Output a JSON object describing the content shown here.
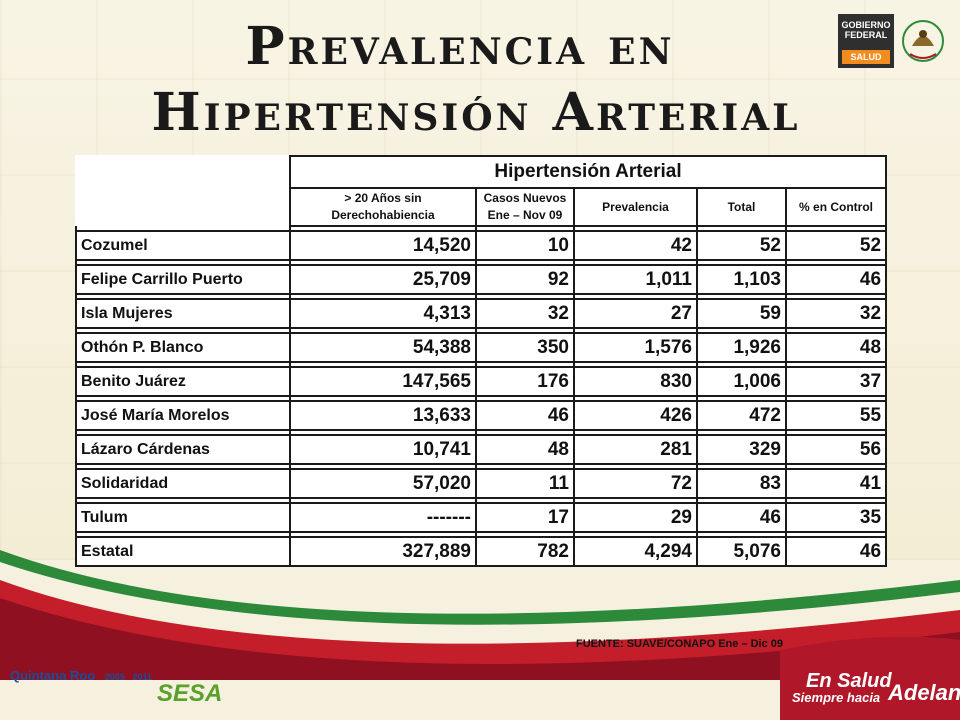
{
  "title": {
    "line1": "Prevalencia en",
    "line2": "Hipertensión Arterial"
  },
  "logo": {
    "gob_line1": "GOBIERNO",
    "gob_line2": "FEDERAL",
    "salud": "SALUD"
  },
  "table": {
    "title": "Hipertensión Arterial",
    "columns": [
      "> 20 Años sin Derechohabiencia",
      "Casos Nuevos Ene – Nov 09",
      "Prevalencia",
      "Total",
      "% en Control"
    ],
    "rows": [
      {
        "name": "Cozumel",
        "c1": "14,520",
        "c2": "10",
        "c3": "42",
        "c4": "52",
        "c5": "52"
      },
      {
        "name": "Felipe Carrillo Puerto",
        "c1": "25,709",
        "c2": "92",
        "c3": "1,011",
        "c4": "1,103",
        "c5": "46"
      },
      {
        "name": "Isla Mujeres",
        "c1": "4,313",
        "c2": "32",
        "c3": "27",
        "c4": "59",
        "c5": "32"
      },
      {
        "name": "Othón P. Blanco",
        "c1": "54,388",
        "c2": "350",
        "c3": "1,576",
        "c4": "1,926",
        "c5": "48"
      },
      {
        "name": "Benito Juárez",
        "c1": "147,565",
        "c2": "176",
        "c3": "830",
        "c4": "1,006",
        "c5": "37"
      },
      {
        "name": "José María Morelos",
        "c1": "13,633",
        "c2": "46",
        "c3": "426",
        "c4": "472",
        "c5": "55"
      },
      {
        "name": "Lázaro Cárdenas",
        "c1": "10,741",
        "c2": "48",
        "c3": "281",
        "c4": "329",
        "c5": "56"
      },
      {
        "name": "Solidaridad",
        "c1": "57,020",
        "c2": "11",
        "c3": "72",
        "c4": "83",
        "c5": "41"
      },
      {
        "name": "Tulum",
        "c1": "-------",
        "c2": "17",
        "c3": "29",
        "c4": "46",
        "c5": "35"
      },
      {
        "name": "Estatal",
        "c1": "327,889",
        "c2": "782",
        "c3": "4,294",
        "c4": "5,076",
        "c5": "46"
      }
    ]
  },
  "footer": {
    "source": "FUENTE: SUAVE/CONAPO   Ene – Dic 09",
    "left_logo": "Quintana Roo",
    "left_logo_year1": "2005",
    "left_logo_year2": "2011",
    "sesa": "SESA",
    "right_logo_line1": "En Salud",
    "right_logo_line2": "Siempre hacia",
    "right_logo_line3": "Adelante"
  },
  "colors": {
    "background": "#f6f1de",
    "accent_red": "#b0182a",
    "accent_green": "#2d8a3a",
    "salud_orange": "#f28c1e"
  }
}
